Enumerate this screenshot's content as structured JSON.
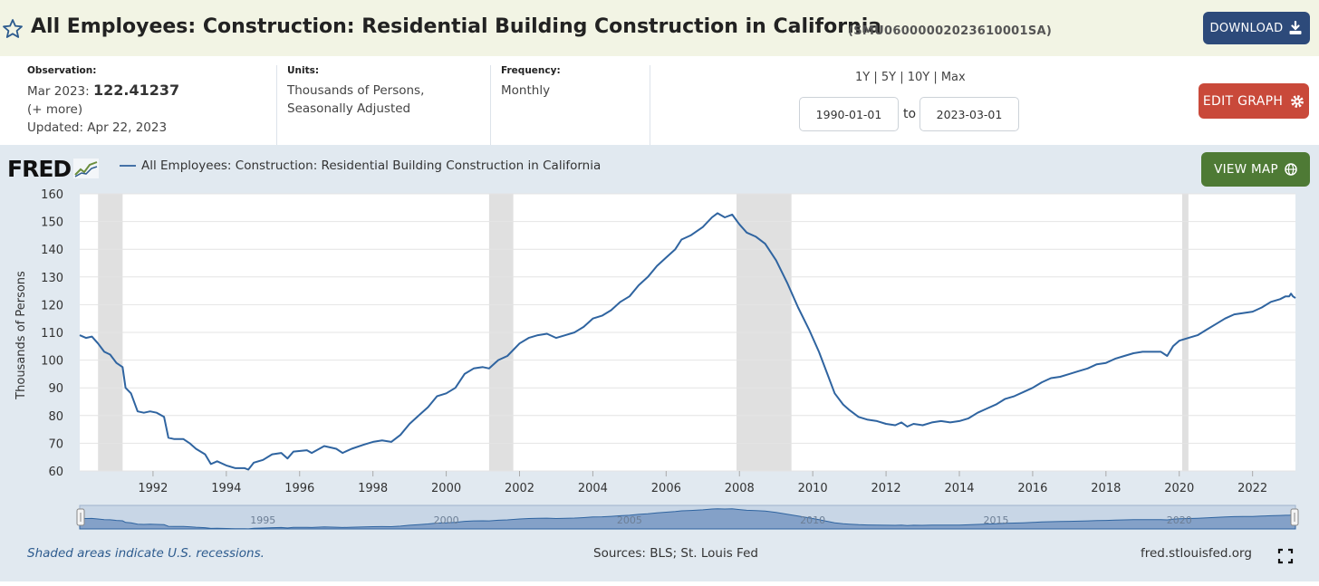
{
  "header": {
    "title": "All Employees: Construction: Residential Building Construction in California",
    "series_id": "(SMU06000002023610001SA)",
    "download_label": "DOWNLOAD"
  },
  "info": {
    "observation_label": "Observation:",
    "observation_date": "Mar 2023:",
    "observation_value": "122.41237",
    "more_link": "(+ more)",
    "updated": "Updated: Apr 22, 2023",
    "units_label": "Units:",
    "units_line1": "Thousands of Persons,",
    "units_line2": "Seasonally Adjusted",
    "frequency_label": "Frequency:",
    "frequency_value": "Monthly",
    "range_links": "1Y | 5Y | 10Y | Max",
    "start_date": "1990-01-01",
    "to_label": "to",
    "end_date": "2023-03-01",
    "edit_label": "EDIT GRAPH"
  },
  "panel": {
    "logo_text": "FRED",
    "legend_label": "All Employees: Construction: Residential Building Construction in California",
    "viewmap_label": "VIEW MAP",
    "recession_note": "Shaded areas indicate U.S. recessions.",
    "sources": "Sources: BLS; St. Louis Fed",
    "site_url": "fred.stlouisfed.org"
  },
  "colors": {
    "series": "#2f64a0",
    "recession": "#e0e0e0",
    "download": "#2d4a7a",
    "edit": "#c9493a",
    "viewmap": "#4e7a35"
  },
  "chart_data": {
    "type": "line",
    "ylabel": "Thousands of Persons",
    "ylim": [
      60,
      160
    ],
    "xlim": [
      1990.0,
      2023.17
    ],
    "y_ticks": [
      60,
      70,
      80,
      90,
      100,
      110,
      120,
      130,
      140,
      150,
      160
    ],
    "x_ticks": [
      1992,
      1994,
      1996,
      1998,
      2000,
      2002,
      2004,
      2006,
      2008,
      2010,
      2012,
      2014,
      2016,
      2018,
      2020,
      2022
    ],
    "navigator_ticks": [
      1995,
      2000,
      2005,
      2010,
      2015,
      2020
    ],
    "recessions": [
      [
        1990.5,
        1991.17
      ],
      [
        2001.17,
        2001.83
      ],
      [
        2007.92,
        2009.42
      ],
      [
        2020.08,
        2020.25
      ]
    ],
    "grid": true,
    "series": [
      {
        "name": "All Employees: Construction: Residential Building Construction in California",
        "points": [
          [
            1990.0,
            109
          ],
          [
            1990.17,
            108
          ],
          [
            1990.33,
            108.5
          ],
          [
            1990.5,
            106
          ],
          [
            1990.67,
            103
          ],
          [
            1990.83,
            102
          ],
          [
            1991.0,
            99
          ],
          [
            1991.17,
            97.5
          ],
          [
            1991.25,
            90
          ],
          [
            1991.4,
            88
          ],
          [
            1991.58,
            81.5
          ],
          [
            1991.75,
            81
          ],
          [
            1991.92,
            81.5
          ],
          [
            1992.1,
            81
          ],
          [
            1992.3,
            79.5
          ],
          [
            1992.42,
            72
          ],
          [
            1992.58,
            71.5
          ],
          [
            1992.83,
            71.5
          ],
          [
            1993.0,
            70
          ],
          [
            1993.17,
            68
          ],
          [
            1993.42,
            66
          ],
          [
            1993.58,
            62.5
          ],
          [
            1993.75,
            63.5
          ],
          [
            1994.0,
            62
          ],
          [
            1994.25,
            61
          ],
          [
            1994.5,
            61
          ],
          [
            1994.6,
            60.5
          ],
          [
            1994.75,
            63
          ],
          [
            1995.0,
            64
          ],
          [
            1995.25,
            66
          ],
          [
            1995.5,
            66.5
          ],
          [
            1995.67,
            64.5
          ],
          [
            1995.83,
            67
          ],
          [
            1996.2,
            67.5
          ],
          [
            1996.33,
            66.5
          ],
          [
            1996.67,
            69
          ],
          [
            1997.0,
            68
          ],
          [
            1997.17,
            66.5
          ],
          [
            1997.42,
            68
          ],
          [
            1997.75,
            69.5
          ],
          [
            1998.0,
            70.5
          ],
          [
            1998.25,
            71
          ],
          [
            1998.5,
            70.5
          ],
          [
            1998.75,
            73
          ],
          [
            1999.0,
            77
          ],
          [
            1999.25,
            80
          ],
          [
            1999.5,
            83
          ],
          [
            1999.75,
            87
          ],
          [
            2000.0,
            88
          ],
          [
            2000.25,
            90
          ],
          [
            2000.5,
            95
          ],
          [
            2000.75,
            97
          ],
          [
            2001.0,
            97.5
          ],
          [
            2001.17,
            97
          ],
          [
            2001.42,
            100
          ],
          [
            2001.67,
            101.5
          ],
          [
            2002.0,
            106
          ],
          [
            2002.25,
            108
          ],
          [
            2002.5,
            109
          ],
          [
            2002.75,
            109.5
          ],
          [
            2003.0,
            108
          ],
          [
            2003.25,
            109
          ],
          [
            2003.5,
            110
          ],
          [
            2003.75,
            112
          ],
          [
            2004.0,
            115
          ],
          [
            2004.25,
            116
          ],
          [
            2004.5,
            118
          ],
          [
            2004.75,
            121
          ],
          [
            2005.0,
            123
          ],
          [
            2005.25,
            127
          ],
          [
            2005.5,
            130
          ],
          [
            2005.75,
            134
          ],
          [
            2006.0,
            137
          ],
          [
            2006.25,
            140
          ],
          [
            2006.42,
            143.5
          ],
          [
            2006.67,
            145
          ],
          [
            2007.0,
            148
          ],
          [
            2007.25,
            151.5
          ],
          [
            2007.4,
            153
          ],
          [
            2007.6,
            151.5
          ],
          [
            2007.8,
            152.5
          ],
          [
            2008.0,
            149
          ],
          [
            2008.2,
            146
          ],
          [
            2008.45,
            144.5
          ],
          [
            2008.7,
            142
          ],
          [
            2009.0,
            136
          ],
          [
            2009.3,
            128
          ],
          [
            2009.6,
            119
          ],
          [
            2009.9,
            111
          ],
          [
            2010.17,
            103
          ],
          [
            2010.4,
            95
          ],
          [
            2010.6,
            88
          ],
          [
            2010.83,
            84
          ],
          [
            2011.0,
            82
          ],
          [
            2011.25,
            79.5
          ],
          [
            2011.5,
            78.5
          ],
          [
            2011.75,
            78
          ],
          [
            2012.0,
            77
          ],
          [
            2012.25,
            76.5
          ],
          [
            2012.42,
            77.5
          ],
          [
            2012.58,
            76
          ],
          [
            2012.75,
            77
          ],
          [
            2013.0,
            76.5
          ],
          [
            2013.25,
            77.5
          ],
          [
            2013.5,
            78
          ],
          [
            2013.75,
            77.5
          ],
          [
            2014.0,
            78
          ],
          [
            2014.25,
            79
          ],
          [
            2014.5,
            81
          ],
          [
            2014.75,
            82.5
          ],
          [
            2015.0,
            84
          ],
          [
            2015.25,
            86
          ],
          [
            2015.5,
            87
          ],
          [
            2015.75,
            88.5
          ],
          [
            2016.0,
            90
          ],
          [
            2016.25,
            92
          ],
          [
            2016.5,
            93.5
          ],
          [
            2016.75,
            94
          ],
          [
            2017.0,
            95
          ],
          [
            2017.25,
            96
          ],
          [
            2017.5,
            97
          ],
          [
            2017.75,
            98.5
          ],
          [
            2018.0,
            99
          ],
          [
            2018.25,
            100.5
          ],
          [
            2018.5,
            101.5
          ],
          [
            2018.75,
            102.5
          ],
          [
            2019.0,
            103
          ],
          [
            2019.25,
            103
          ],
          [
            2019.5,
            103
          ],
          [
            2019.67,
            101.5
          ],
          [
            2019.83,
            105
          ],
          [
            2020.0,
            107
          ],
          [
            2020.25,
            108
          ],
          [
            2020.5,
            109
          ],
          [
            2020.75,
            111
          ],
          [
            2021.0,
            113
          ],
          [
            2021.25,
            115
          ],
          [
            2021.5,
            116.5
          ],
          [
            2021.75,
            117
          ],
          [
            2022.0,
            117.5
          ],
          [
            2022.25,
            119
          ],
          [
            2022.5,
            121
          ],
          [
            2022.75,
            122
          ],
          [
            2022.9,
            123
          ],
          [
            2023.0,
            123
          ],
          [
            2023.05,
            124
          ],
          [
            2023.1,
            123
          ],
          [
            2023.17,
            122.4
          ]
        ]
      }
    ]
  }
}
